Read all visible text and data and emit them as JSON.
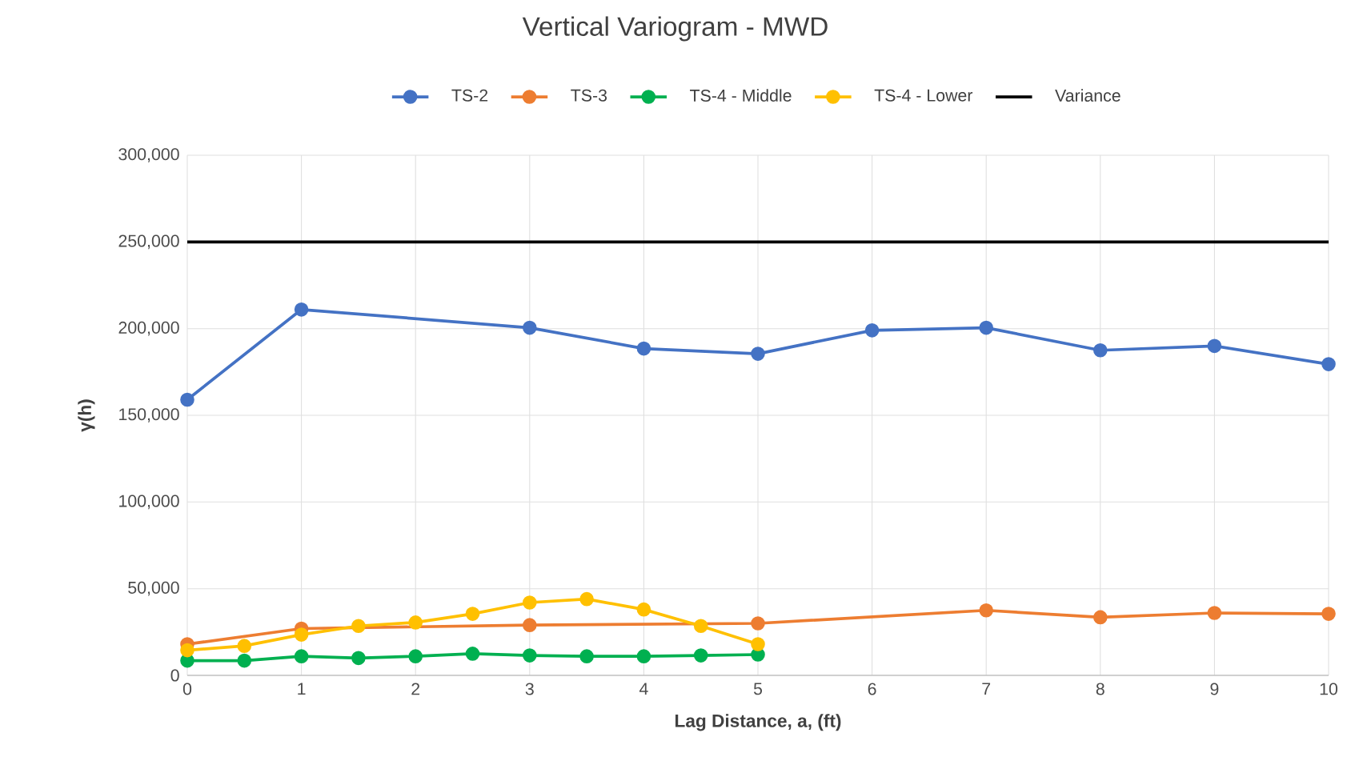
{
  "chart_data": {
    "type": "line",
    "title": "Vertical Variogram - MWD",
    "xlabel": "Lag Distance, a, (ft)",
    "ylabel": "γ(h)",
    "xlim": [
      0,
      10
    ],
    "xticks": [
      0,
      1,
      2,
      3,
      4,
      5,
      6,
      7,
      8,
      9,
      10
    ],
    "ylim": [
      0,
      300000
    ],
    "yticks": [
      0,
      {
        "value": 50000,
        "label": "50,000"
      },
      {
        "value": 100000,
        "label": "100,000"
      },
      {
        "value": 150000,
        "label": "150,000"
      },
      {
        "value": 200000,
        "label": "200,000"
      },
      {
        "value": 250000,
        "label": "250,000"
      },
      {
        "value": 300000,
        "label": "300,000"
      }
    ],
    "grid": true,
    "legend": "top",
    "marker": "circle",
    "series": [
      {
        "name": "TS-2",
        "color": "#4472c4",
        "x": [
          0,
          1,
          3,
          4,
          5,
          6,
          7,
          8,
          9,
          10
        ],
        "values": [
          159000,
          211000,
          200500,
          188500,
          185500,
          199000,
          200500,
          187500,
          190000,
          179500
        ]
      },
      {
        "name": "TS-3",
        "color": "#ed7d31",
        "x": [
          0,
          1,
          3,
          5,
          7,
          8,
          9,
          10
        ],
        "values": [
          18000,
          27000,
          29000,
          30000,
          37500,
          33500,
          36000,
          35500
        ]
      },
      {
        "name": "TS-4 - Middle",
        "color": "#00b050",
        "x": [
          0,
          0.5,
          1,
          1.5,
          2,
          2.5,
          3,
          3.5,
          4,
          4.5,
          5
        ],
        "values": [
          8500,
          8500,
          11000,
          10000,
          11000,
          12500,
          11500,
          11000,
          11000,
          11500,
          12000
        ]
      },
      {
        "name": "TS-4 - Lower",
        "color": "#ffc000",
        "x": [
          0,
          0.5,
          1,
          1.5,
          2,
          2.5,
          3,
          3.5,
          4,
          4.5,
          5
        ],
        "values": [
          14500,
          17000,
          23500,
          28500,
          30500,
          35500,
          42000,
          44000,
          38000,
          28500,
          18000
        ]
      },
      {
        "name": "Variance",
        "color": "#000000",
        "marker": "none",
        "x": [
          0,
          10
        ],
        "values": [
          250000,
          250000
        ]
      }
    ]
  }
}
